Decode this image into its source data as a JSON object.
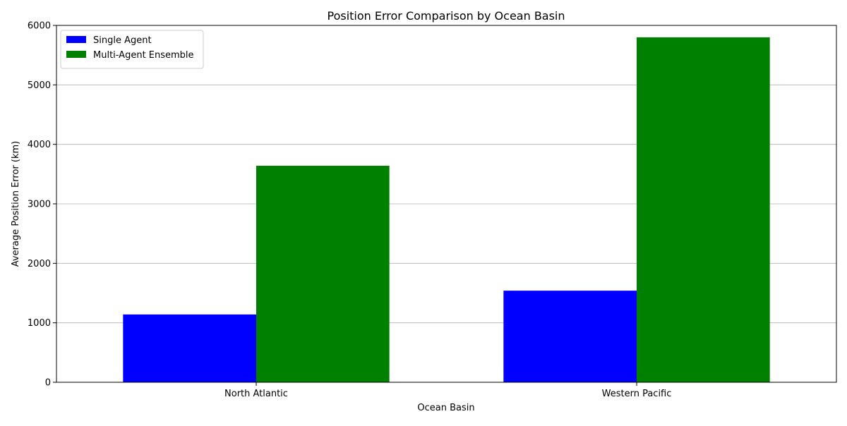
{
  "chart_data": {
    "type": "bar",
    "title": "Position Error Comparison by Ocean Basin",
    "xlabel": "Ocean Basin",
    "ylabel": "Average Position Error (km)",
    "categories": [
      "North Atlantic",
      "Western Pacific"
    ],
    "series": [
      {
        "name": "Single Agent",
        "color": "#0000ff",
        "values": [
          1140,
          1540
        ]
      },
      {
        "name": "Multi-Agent Ensemble",
        "color": "#008000",
        "values": [
          3640,
          5800
        ]
      }
    ],
    "ylim": [
      0,
      6000
    ],
    "yticks": [
      0,
      1000,
      2000,
      3000,
      4000,
      5000,
      6000
    ],
    "grid": "y-major",
    "legend_position": "top-left"
  }
}
